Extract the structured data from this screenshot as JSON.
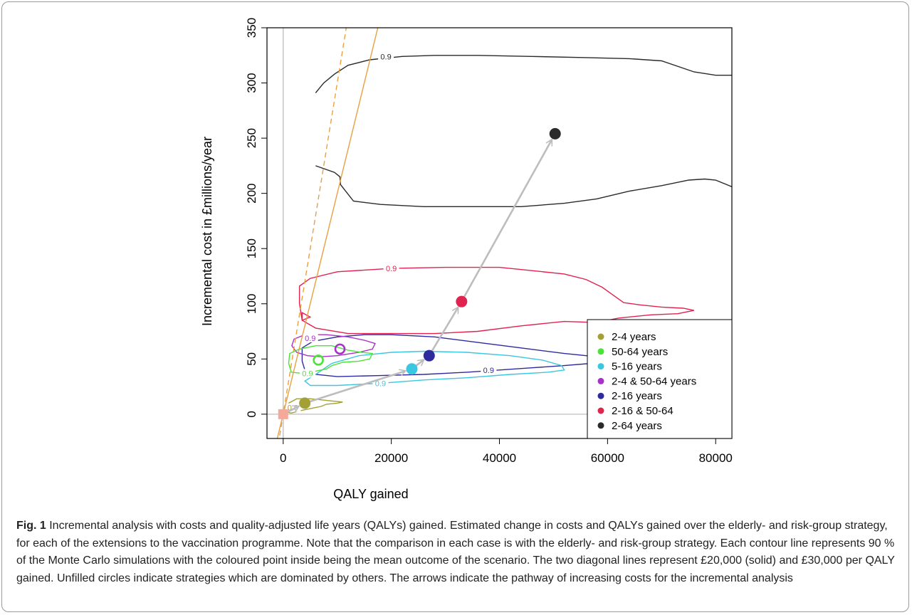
{
  "chart_data": {
    "type": "scatter",
    "xlabel": "QALY gained",
    "ylabel": "Incremental cost in £millions/year",
    "xlim": [
      -3000,
      83000
    ],
    "ylim": [
      -22,
      350
    ],
    "xticks": [
      0,
      20000,
      40000,
      60000,
      80000
    ],
    "yticks": [
      0,
      50,
      100,
      150,
      200,
      250,
      300,
      350
    ],
    "origin": {
      "x": 0,
      "y": 0,
      "color": "#f4a99a"
    },
    "series": [
      {
        "name": "2-4 years",
        "x": 4000,
        "y": 10,
        "color": "#a3a035",
        "filled": true
      },
      {
        "name": "50-64 years",
        "x": 6500,
        "y": 49,
        "color": "#4be33a",
        "filled": false
      },
      {
        "name": "5-16 years",
        "x": 23800,
        "y": 41,
        "color": "#3ac7e0",
        "filled": true
      },
      {
        "name": "2-4 & 50-64 years",
        "x": 10500,
        "y": 59,
        "color": "#a832c9",
        "filled": false
      },
      {
        "name": "2-16 years",
        "x": 27000,
        "y": 53,
        "color": "#2f2a9e",
        "filled": true
      },
      {
        "name": "2-16 & 50-64",
        "x": 33000,
        "y": 102,
        "color": "#e0234f",
        "filled": true
      },
      {
        "name": "2-64 years",
        "x": 50300,
        "y": 254,
        "color": "#2a2a2a",
        "filled": true
      }
    ],
    "contour_level_label": "0.9",
    "thresholds": [
      {
        "per_qaly": 20000,
        "style": "solid",
        "color": "#e8a040"
      },
      {
        "per_qaly": 30000,
        "style": "dashed",
        "color": "#e8a040"
      }
    ],
    "arrow_path": [
      "origin",
      "2-4 years",
      "5-16 years",
      "2-16 years",
      "2-16 & 50-64",
      "2-64 years"
    ],
    "legend_position": "bottom-right",
    "grid": false
  },
  "caption": {
    "label": "Fig. 1",
    "text": " Incremental analysis with costs and quality-adjusted life years (QALYs) gained. Estimated change in costs and QALYs gained over the elderly- and risk-group strategy, for each of the extensions to the vaccination programme. Note that the comparison in each case is with the elderly- and risk-group strategy. Each contour line represents 90 % of the Monte Carlo simulations with the coloured point inside being the mean outcome of the scenario. The two diagonal lines represent £20,000 (solid) and £30,000 per QALY gained. Unfilled circles indicate strategies which are dominated by others. The arrows indicate the pathway of increasing costs for the incremental analysis"
  }
}
